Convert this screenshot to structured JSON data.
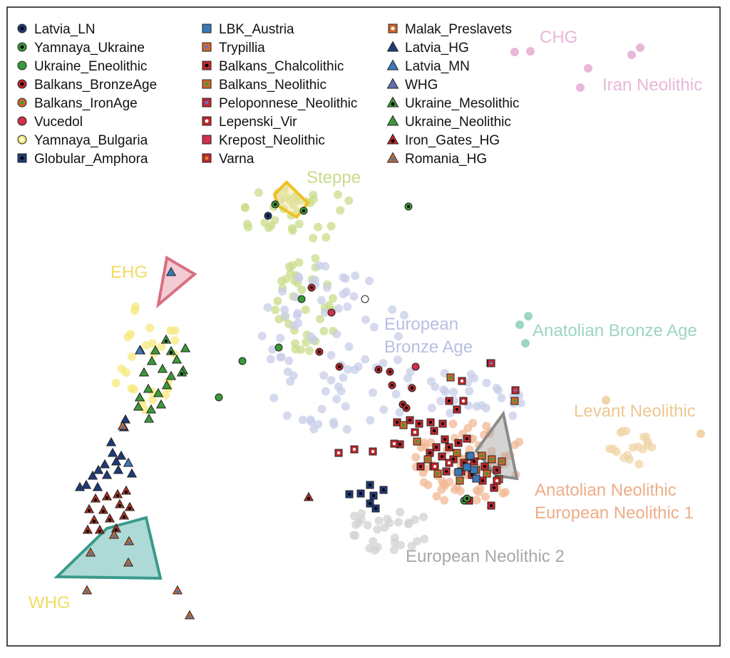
{
  "chart_data": {
    "type": "scatter",
    "title": "",
    "xlabel": "",
    "ylabel": "",
    "legend_position": "top-left",
    "colors": {
      "ancient_dark": "#1f3a7a",
      "ancient_green": "#3a9a3a",
      "ancient_red": "#c0282e",
      "ancient_orange": "#d2662a",
      "ancient_blue": "#3b79b8",
      "ancient_dark_red": "#b03020",
      "bg_steppe": "#c9dc8a",
      "bg_eurobronze": "#c8cde8",
      "bg_chg": "#e8b8d8",
      "bg_anat_bronze": "#9ed6bf",
      "bg_levant": "#f0d4a8",
      "bg_anat_neo": "#f2b894",
      "bg_euroneo2": "#d2d2d2",
      "bg_yellow": "#f6e87a"
    },
    "legend": {
      "col1": [
        {
          "label": "Latvia_LN",
          "marker": "circle",
          "fill": "#1f3a7a",
          "center": "#000000"
        },
        {
          "label": "Yamnaya_Ukraine",
          "marker": "circle",
          "fill": "#3a9a3a",
          "center": "#000000"
        },
        {
          "label": "Ukraine_Eneolithic",
          "marker": "circle",
          "fill": "#3a9a3a",
          "center": ""
        },
        {
          "label": "Balkans_BronzeAge",
          "marker": "circle",
          "fill": "#c0282e",
          "center": "#000000"
        },
        {
          "label": "Balkans_IronAge",
          "marker": "circle",
          "fill": "#d2662a",
          "center": "#3a9a3a"
        },
        {
          "label": "Vucedol",
          "marker": "circle",
          "fill": "#d0304a",
          "center": ""
        },
        {
          "label": "Yamnaya_Bulgaria",
          "marker": "circle",
          "fill": "#f6e87a",
          "center": "#ffffff"
        },
        {
          "label": "Globular_Amphora",
          "marker": "square",
          "fill": "#1f3a7a",
          "center": "#000000"
        }
      ],
      "col2": [
        {
          "label": "LBK_Austria",
          "marker": "square",
          "fill": "#3b79b8",
          "center": ""
        },
        {
          "label": "Trypillia",
          "marker": "square",
          "fill": "#d2662a",
          "center": "#7070c0"
        },
        {
          "label": "Balkans_Chalcolithic",
          "marker": "square",
          "fill": "#c0282e",
          "center": "#000000"
        },
        {
          "label": "Balkans_Neolithic",
          "marker": "square",
          "fill": "#d2662a",
          "center": "#3a9a3a"
        },
        {
          "label": "Peloponnese_Neolithic",
          "marker": "square",
          "fill": "#c0282e",
          "center": "#7070c0"
        },
        {
          "label": "Lepenski_Vir",
          "marker": "square",
          "fill": "#c0282e",
          "center": "#ffffff"
        },
        {
          "label": "Krepost_Neolithic",
          "marker": "square",
          "fill": "#d0304a",
          "center": ""
        },
        {
          "label": "Varna",
          "marker": "square",
          "fill": "#c0282e",
          "center": "#d2862a"
        }
      ],
      "col3": [
        {
          "label": "Malak_Preslavets",
          "marker": "square",
          "fill": "#d2662a",
          "center": "#ffffff"
        },
        {
          "label": "Latvia_HG",
          "marker": "triangle",
          "fill": "#1f3a7a",
          "center": ""
        },
        {
          "label": "Latvia_MN",
          "marker": "triangle",
          "fill": "#3b79b8",
          "center": ""
        },
        {
          "label": "WHG",
          "marker": "triangle",
          "fill": "#6070b0",
          "center": ""
        },
        {
          "label": "Ukraine_Mesolithic",
          "marker": "triangle",
          "fill": "#3a9a3a",
          "center": "#000000"
        },
        {
          "label": "Ukraine_Neolithic",
          "marker": "triangle",
          "fill": "#3a9a3a",
          "center": ""
        },
        {
          "label": "Iron_Gates_HG",
          "marker": "triangle",
          "fill": "#c0282e",
          "center": "#000000"
        },
        {
          "label": "Romania_HG",
          "marker": "triangle",
          "fill": "#d2662a",
          "center": "#3b79b8"
        }
      ]
    },
    "region_labels": {
      "chg": "CHG",
      "iran_neolithic": "Iran Neolithic",
      "steppe": "Steppe",
      "ehg": "EHG",
      "european_bronze_age_1": "European",
      "european_bronze_age_2": "Bronze Age",
      "anatolian_bronze_age": "Anatolian Bronze Age",
      "levant_neolithic": "Levant Neolithic",
      "anatolian_neolithic": "Anatolian Neolithic",
      "european_neolithic_1": "European Neolithic 1",
      "european_neolithic_2": "European Neolithic 2",
      "whg": "WHG"
    }
  }
}
